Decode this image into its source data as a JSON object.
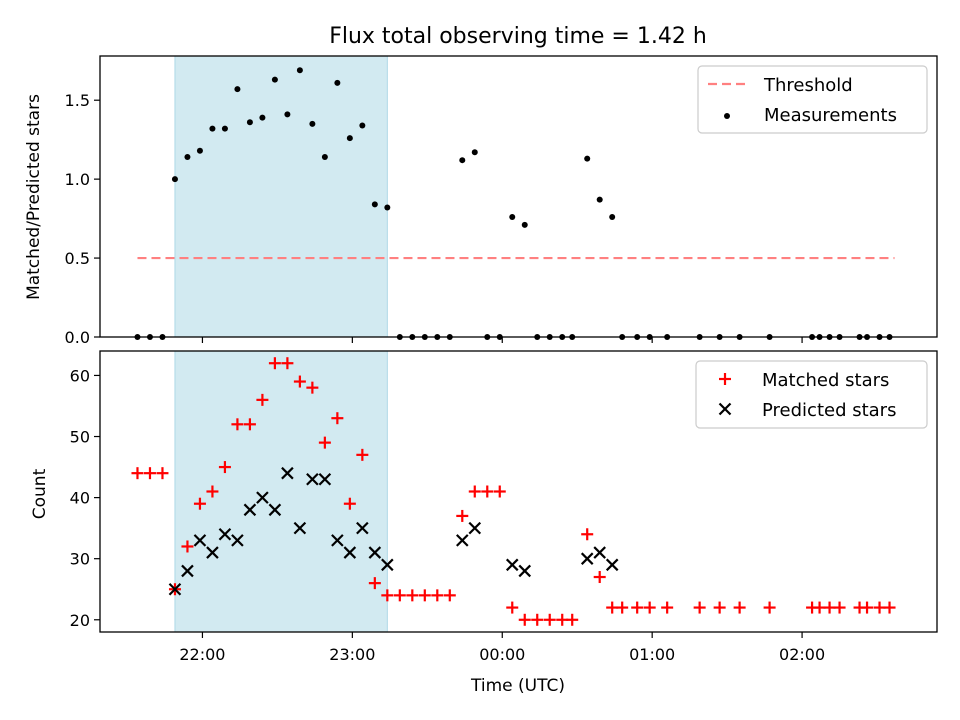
{
  "chart_data": {
    "type": "scatter",
    "title": "Flux total observing time = 1.42 h",
    "xlabel": "Time (UTC)",
    "x_ticks": [
      "22:00",
      "23:00",
      "00:00",
      "01:00",
      "02:00"
    ],
    "x_tick_minutes": [
      1320,
      1380,
      1440,
      1500,
      1560
    ],
    "x_range_minutes": [
      1279,
      1614
    ],
    "shaded_interval_minutes": [
      1309,
      1394
    ],
    "colors": {
      "threshold": "#ff8080",
      "measurement": "#000000",
      "matched": "#ff0000",
      "predicted": "#000000",
      "shade": "#add8e6"
    },
    "panels": [
      {
        "ylabel": "Matched/Predicted stars",
        "ylim": [
          0,
          1.78
        ],
        "y_ticks": [
          0.0,
          0.5,
          1.0,
          1.5
        ],
        "y_tick_labels": [
          "0.0",
          "0.5",
          "1.0",
          "1.5"
        ],
        "legend": [
          "Threshold",
          "Measurements"
        ],
        "legend_position": "top-right",
        "threshold": {
          "name": "Threshold",
          "y": 0.5,
          "x_start_minutes": 1294,
          "x_end_minutes": 1597
        },
        "series": [
          {
            "name": "Measurements",
            "x_minutes": [
              1294,
              1299,
              1304,
              1309,
              1314,
              1319,
              1324,
              1329,
              1334,
              1339,
              1344,
              1349,
              1354,
              1359,
              1364,
              1369,
              1374,
              1379,
              1384,
              1389,
              1394,
              1399,
              1404,
              1409,
              1414,
              1419,
              1424,
              1429,
              1434,
              1439,
              1444,
              1449,
              1454,
              1459,
              1464,
              1468,
              1474,
              1479,
              1484,
              1488,
              1494,
              1499,
              1506,
              1519,
              1527,
              1535,
              1547,
              1564,
              1567,
              1571,
              1575,
              1583,
              1586,
              1591,
              1595
            ],
            "y": [
              0,
              0,
              0,
              1.0,
              1.14,
              1.18,
              1.32,
              1.32,
              1.57,
              1.36,
              1.39,
              1.63,
              1.41,
              1.69,
              1.35,
              1.14,
              1.61,
              1.26,
              1.34,
              0.84,
              0.82,
              0,
              0,
              0,
              0,
              0,
              1.12,
              1.17,
              0,
              0,
              0.76,
              0.71,
              0,
              0,
              0,
              0,
              1.13,
              0.87,
              0.76,
              0,
              0,
              0,
              0,
              0,
              0,
              0,
              0,
              0,
              0,
              0,
              0,
              0,
              0,
              0,
              0
            ]
          }
        ]
      },
      {
        "ylabel": "Count",
        "ylim": [
          18,
          64
        ],
        "y_ticks": [
          20,
          30,
          40,
          50,
          60
        ],
        "y_tick_labels": [
          "20",
          "30",
          "40",
          "50",
          "60"
        ],
        "legend": [
          "Matched stars",
          "Predicted stars"
        ],
        "legend_position": "top-right",
        "series": [
          {
            "name": "Matched stars",
            "marker": "+",
            "x_minutes": [
              1294,
              1299,
              1304,
              1309,
              1314,
              1319,
              1324,
              1329,
              1334,
              1339,
              1344,
              1349,
              1354,
              1359,
              1364,
              1369,
              1374,
              1379,
              1384,
              1389,
              1394,
              1399,
              1404,
              1409,
              1414,
              1419,
              1424,
              1429,
              1434,
              1439,
              1444,
              1449,
              1454,
              1459,
              1464,
              1468,
              1474,
              1479,
              1484,
              1488,
              1494,
              1499,
              1506,
              1519,
              1527,
              1535,
              1547,
              1564,
              1567,
              1571,
              1575,
              1583,
              1586,
              1591,
              1595
            ],
            "y": [
              44,
              44,
              44,
              25,
              32,
              39,
              41,
              45,
              52,
              52,
              56,
              62,
              62,
              59,
              58,
              49,
              53,
              39,
              47,
              26,
              24,
              24,
              24,
              24,
              24,
              24,
              37,
              41,
              41,
              41,
              22,
              20,
              20,
              20,
              20,
              20,
              34,
              27,
              22,
              22,
              22,
              22,
              22,
              22,
              22,
              22,
              22,
              22,
              22,
              22,
              22,
              22,
              22,
              22,
              22
            ]
          },
          {
            "name": "Predicted stars",
            "marker": "x",
            "x_minutes": [
              1309,
              1314,
              1319,
              1324,
              1329,
              1334,
              1339,
              1344,
              1349,
              1354,
              1359,
              1364,
              1369,
              1374,
              1379,
              1384,
              1389,
              1394,
              1424,
              1429,
              1444,
              1449,
              1474,
              1479,
              1484
            ],
            "y": [
              25,
              28,
              33,
              31,
              34,
              33,
              38,
              40,
              38,
              44,
              35,
              43,
              43,
              33,
              31,
              35,
              31,
              29,
              33,
              35,
              29,
              28,
              30,
              31,
              29
            ]
          }
        ]
      }
    ]
  }
}
